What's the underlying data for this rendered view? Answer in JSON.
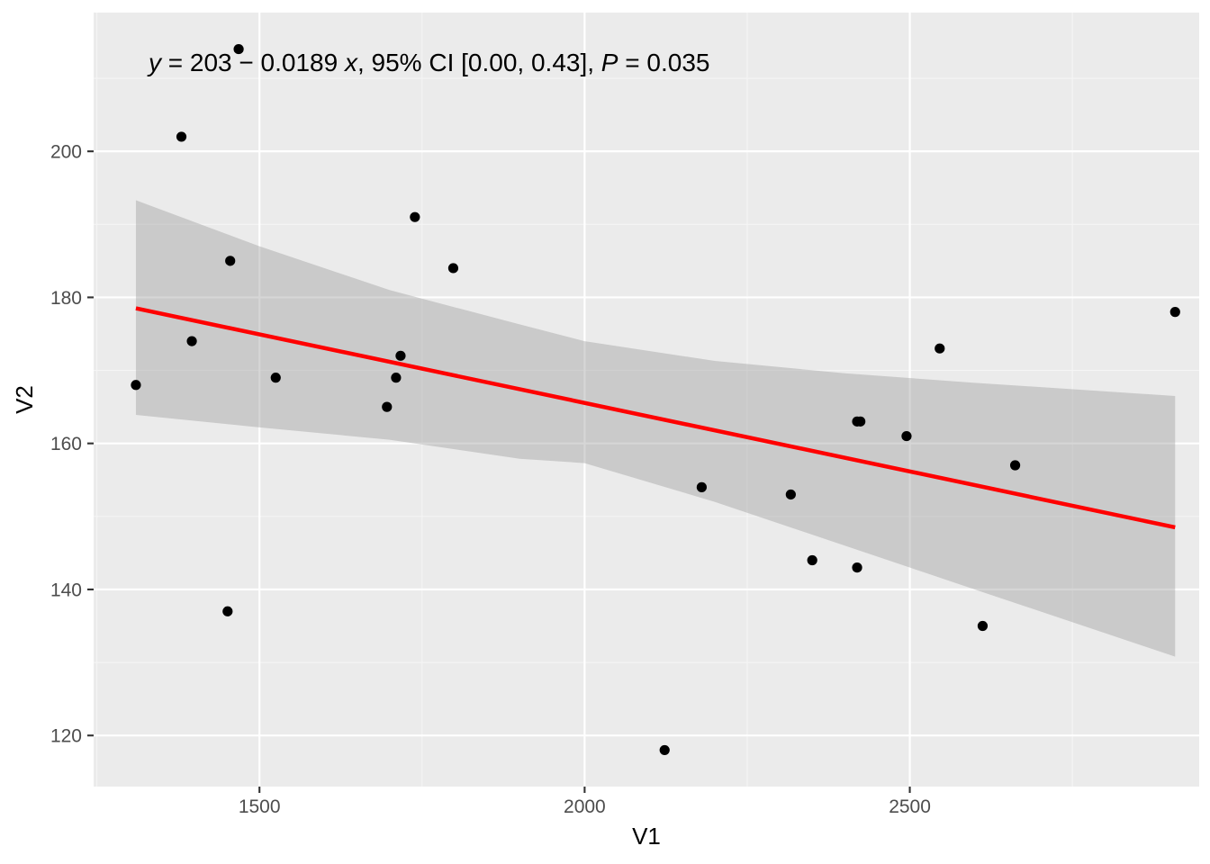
{
  "chart_data": {
    "type": "scatter",
    "xlabel": "V1",
    "ylabel": "V2",
    "xlim": [
      1245,
      2945
    ],
    "ylim": [
      113,
      219
    ],
    "x_ticks": [
      1500,
      2000,
      2500
    ],
    "x_tick_labels": [
      "1500",
      "2000",
      "2500"
    ],
    "y_ticks": [
      120,
      140,
      160,
      180,
      200
    ],
    "y_tick_labels": [
      "120",
      "140",
      "160",
      "180",
      "200"
    ],
    "grid": true,
    "series": [
      {
        "points": [
          {
            "x": 1310,
            "y": 168
          },
          {
            "x": 1380,
            "y": 202
          },
          {
            "x": 1396,
            "y": 174
          },
          {
            "x": 1451,
            "y": 137
          },
          {
            "x": 1455,
            "y": 185
          },
          {
            "x": 1468,
            "y": 214
          },
          {
            "x": 1525,
            "y": 169
          },
          {
            "x": 1696,
            "y": 165
          },
          {
            "x": 1710,
            "y": 169
          },
          {
            "x": 1717,
            "y": 172
          },
          {
            "x": 1739,
            "y": 191
          },
          {
            "x": 1798,
            "y": 184
          },
          {
            "x": 2123,
            "y": 118
          },
          {
            "x": 2180,
            "y": 154
          },
          {
            "x": 2317,
            "y": 153
          },
          {
            "x": 2350,
            "y": 144
          },
          {
            "x": 2419,
            "y": 143
          },
          {
            "x": 2419,
            "y": 163
          },
          {
            "x": 2424,
            "y": 163
          },
          {
            "x": 2495,
            "y": 161
          },
          {
            "x": 2546,
            "y": 173
          },
          {
            "x": 2612,
            "y": 135
          },
          {
            "x": 2662,
            "y": 157
          },
          {
            "x": 2908,
            "y": 178
          }
        ],
        "color": "#000000"
      }
    ],
    "fit": {
      "type": "linear",
      "color": "#ff0000",
      "x_start": 1310,
      "y_start": 178.5,
      "x_end": 2908,
      "y_end": 148.5
    },
    "confidence_band": {
      "color": "#999999",
      "upper": [
        [
          1310,
          193.3
        ],
        [
          1500,
          187.0
        ],
        [
          1700,
          181.0
        ],
        [
          1900,
          176.3
        ],
        [
          2000,
          174.0
        ],
        [
          2200,
          171.3
        ],
        [
          2400,
          169.6
        ],
        [
          2600,
          168.3
        ],
        [
          2908,
          166.5
        ]
      ],
      "lower": [
        [
          1310,
          163.9
        ],
        [
          1500,
          162.2
        ],
        [
          1700,
          160.5
        ],
        [
          1900,
          157.9
        ],
        [
          2000,
          157.3
        ],
        [
          2200,
          152.0
        ],
        [
          2400,
          146.0
        ],
        [
          2600,
          140.0
        ],
        [
          2908,
          130.8
        ]
      ]
    },
    "annotation": {
      "y_italic": "y",
      "eq_rest": " = 203 − 0.0189 ",
      "x_italic": "x",
      "ci_text": ", 95% CI [0.00, 0.43], ",
      "p_italic": "P",
      "p_rest": " = 0.035"
    },
    "colors": {
      "panel_background": "#ebebeb",
      "grid_major": "#ffffff",
      "grid_minor": "#f5f5f5"
    }
  }
}
